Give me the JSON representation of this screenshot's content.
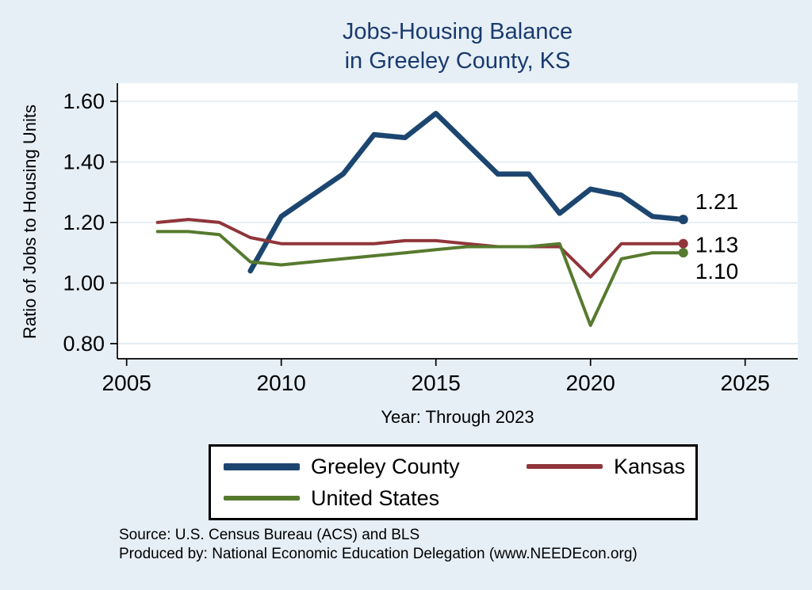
{
  "title": {
    "line1": "Jobs-Housing Balance",
    "line2": "in Greeley County, KS"
  },
  "ylabel": "Ratio of Jobs to Housing Units",
  "xlabel": "Year: Through 2023",
  "source": {
    "line1": "Source: U.S. Census Bureau (ACS) and BLS",
    "line2": "Produced by: National Economic Education Delegation (www.NEEDEcon.org)"
  },
  "colors": {
    "background": "#e6eff6",
    "title": "#1a3a6e",
    "greeley": "#1c4670",
    "kansas": "#90353b",
    "united_states": "#567a2e",
    "gridline": "#dce8f1"
  },
  "legend": {
    "items": [
      {
        "label": "Greeley County",
        "color": "#1c4670",
        "thick": true
      },
      {
        "label": "Kansas",
        "color": "#90353b",
        "thick": false
      },
      {
        "label": "United States",
        "color": "#567a2e",
        "thick": false
      }
    ]
  },
  "chart_data": {
    "type": "line",
    "title": "Jobs-Housing Balance in Greeley County, KS",
    "xlabel": "Year: Through 2023",
    "ylabel": "Ratio of Jobs to Housing Units",
    "xlim": [
      2004.7,
      2026.7
    ],
    "ylim": [
      0.75,
      1.66
    ],
    "xticks": [
      2005,
      2010,
      2015,
      2020,
      2025
    ],
    "yticks": [
      0.8,
      1.0,
      1.2,
      1.4,
      1.6
    ],
    "grid": true,
    "legend_position": "bottom",
    "series": [
      {
        "name": "Greeley County",
        "color": "#1c4670",
        "width": 6.5,
        "x": [
          2009,
          2010,
          2011,
          2012,
          2013,
          2014,
          2015,
          2016,
          2017,
          2018,
          2019,
          2020,
          2021,
          2022,
          2023
        ],
        "values": [
          1.04,
          1.22,
          1.29,
          1.36,
          1.49,
          1.48,
          1.56,
          1.46,
          1.36,
          1.36,
          1.23,
          1.31,
          1.29,
          1.22,
          1.21
        ],
        "end_label": "1.21"
      },
      {
        "name": "Kansas",
        "color": "#90353b",
        "width": 4,
        "x": [
          2006,
          2007,
          2008,
          2009,
          2010,
          2011,
          2012,
          2013,
          2014,
          2015,
          2016,
          2017,
          2018,
          2019,
          2020,
          2021,
          2022,
          2023
        ],
        "values": [
          1.2,
          1.21,
          1.2,
          1.15,
          1.13,
          1.13,
          1.13,
          1.13,
          1.14,
          1.14,
          1.13,
          1.12,
          1.12,
          1.12,
          1.02,
          1.13,
          1.13,
          1.13
        ],
        "end_label": "1.13"
      },
      {
        "name": "United States",
        "color": "#567a2e",
        "width": 4,
        "x": [
          2006,
          2007,
          2008,
          2009,
          2010,
          2011,
          2012,
          2013,
          2014,
          2015,
          2016,
          2017,
          2018,
          2019,
          2020,
          2021,
          2022,
          2023
        ],
        "values": [
          1.17,
          1.17,
          1.16,
          1.07,
          1.06,
          1.07,
          1.08,
          1.09,
          1.1,
          1.11,
          1.12,
          1.12,
          1.12,
          1.13,
          0.86,
          1.08,
          1.1,
          1.1
        ],
        "end_label": "1.10"
      }
    ]
  }
}
